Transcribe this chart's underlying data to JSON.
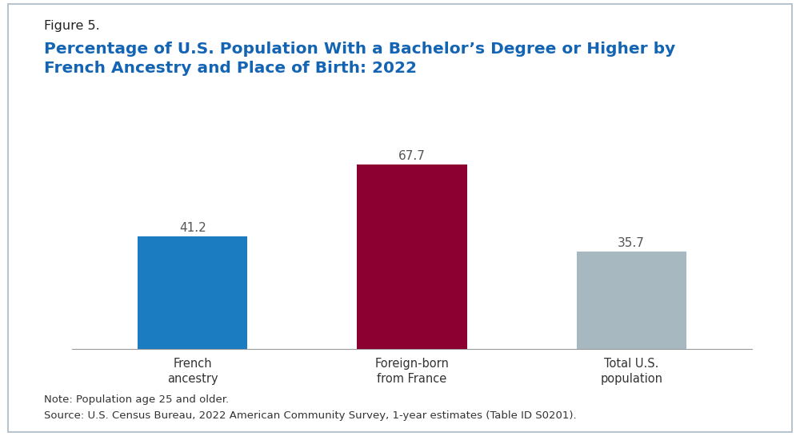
{
  "figure_label": "Figure 5.",
  "title": "Percentage of U.S. Population With a Bachelor’s Degree or Higher by\nFrench Ancestry and Place of Birth: 2022",
  "categories": [
    "French\nancestry",
    "Foreign-born\nfrom France",
    "Total U.S.\npopulation"
  ],
  "values": [
    41.2,
    67.7,
    35.7
  ],
  "bar_colors": [
    "#1b7cc2",
    "#8b0030",
    "#a8b8c0"
  ],
  "value_labels": [
    "41.2",
    "67.7",
    "35.7"
  ],
  "ylim": [
    0,
    80
  ],
  "note_line1": "Note: Population age 25 and older.",
  "note_line2": "Source: U.S. Census Bureau, 2022 American Community Survey, 1-year estimates (Table ID S0201).",
  "title_color": "#1464b4",
  "figure_label_color": "#222222",
  "background_color": "#ffffff",
  "border_color": "#b8c4ce",
  "value_label_color": "#555555",
  "note_color": "#333333",
  "bar_width": 0.5,
  "x_positions": [
    0,
    1,
    2
  ],
  "xlim": [
    -0.55,
    2.55
  ]
}
